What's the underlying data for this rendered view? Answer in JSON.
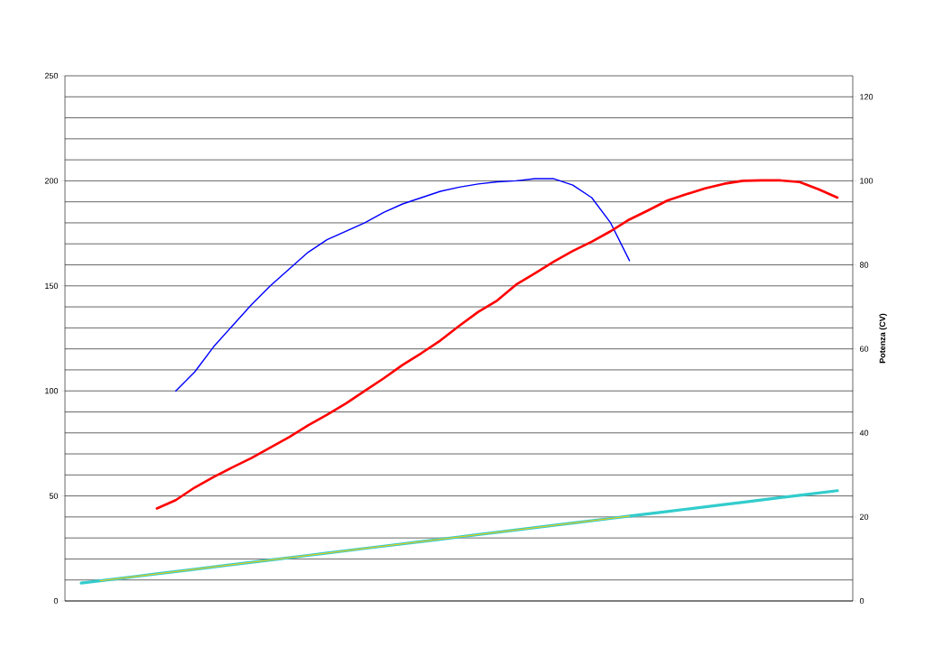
{
  "chart_data": {
    "type": "line",
    "categories": [
      null,
      null,
      null,
      null,
      null,
      null,
      null,
      null,
      null,
      null,
      null,
      null,
      null,
      null,
      null,
      null,
      null,
      null,
      null,
      null,
      null,
      null,
      null,
      null,
      null,
      null,
      null,
      null,
      null,
      null,
      null,
      null,
      null,
      null,
      null,
      null,
      null,
      null,
      null,
      null,
      null
    ],
    "series": [
      {
        "color": "#33cccc",
        "values": [
          8.5,
          9.6,
          10.7,
          11.8,
          12.9,
          14.0,
          15.1,
          16.2,
          17.3,
          18.4,
          19.5,
          20.6,
          21.7,
          22.8,
          23.9,
          25.0,
          26.1,
          27.2,
          28.3,
          29.4,
          30.5,
          31.6,
          32.7,
          33.8,
          34.9,
          36.0,
          37.1,
          38.2,
          39.3,
          40.4,
          41.5,
          42.6,
          43.7,
          44.8,
          45.9,
          47.0,
          48.1,
          49.2,
          50.3,
          51.4,
          52.5
        ]
      },
      {
        "color": "#ffcc00",
        "values": [
          null,
          9.6,
          10.7,
          11.8,
          12.9,
          14.0,
          15.1,
          16.2,
          17.3,
          18.4,
          19.5,
          20.6,
          21.7,
          22.8,
          23.9,
          25.0,
          26.1,
          27.2,
          28.3,
          29.4,
          30.5,
          31.6,
          32.7,
          33.8,
          34.9,
          36.0,
          37.1,
          38.2,
          39.3,
          40.4,
          null,
          null,
          null,
          null,
          null,
          null,
          null,
          null,
          null,
          null,
          null
        ]
      },
      {
        "color": "#0000ff",
        "values": [
          null,
          null,
          null,
          null,
          null,
          100,
          109,
          121,
          131,
          141,
          150,
          158,
          166,
          172,
          176,
          180,
          185,
          189,
          192,
          195,
          197,
          198.5,
          199.5,
          200,
          201,
          201,
          198,
          192,
          180,
          162,
          null,
          null,
          null,
          null,
          null,
          null,
          null,
          null,
          null,
          null,
          null
        ]
      },
      {
        "color": "#ff0000",
        "axis": "y2",
        "values": [
          null,
          null,
          null,
          null,
          22,
          24,
          27,
          29.5,
          31.8,
          34,
          36.5,
          39,
          41.8,
          44.3,
          47,
          50,
          53,
          56.2,
          59,
          62,
          65.5,
          68.8,
          71.5,
          75.3,
          78,
          80.8,
          83.3,
          85.5,
          88,
          90.8,
          93,
          95.3,
          96.8,
          98.2,
          99.3,
          100,
          100.1,
          100.1,
          99.7,
          98,
          96
        ]
      }
    ],
    "ylim": [
      0,
      250
    ],
    "yticks": [
      0,
      {
        "value": 10,
        "label": null
      },
      {
        "value": 20,
        "label": null
      },
      {
        "value": 30,
        "label": null
      },
      {
        "value": 40,
        "label": null
      },
      50,
      {
        "value": 60,
        "label": null
      },
      {
        "value": 70,
        "label": null
      },
      {
        "value": 80,
        "label": null
      },
      {
        "value": 90,
        "label": null
      },
      100,
      {
        "value": 110,
        "label": null
      },
      {
        "value": 120,
        "label": null
      },
      {
        "value": 130,
        "label": null
      },
      {
        "value": 140,
        "label": null
      },
      150,
      {
        "value": 160,
        "label": null
      },
      {
        "value": 170,
        "label": null
      },
      {
        "value": 180,
        "label": null
      },
      {
        "value": 190,
        "label": null
      },
      200,
      {
        "value": 210,
        "label": null
      },
      {
        "value": 220,
        "label": null
      },
      {
        "value": 230,
        "label": null
      },
      {
        "value": 240,
        "label": null
      },
      250
    ],
    "y2lim": [
      0,
      125
    ],
    "y2ticks": [
      0,
      20,
      40,
      60,
      80,
      100,
      120
    ],
    "y2label": "Potenza (CV)",
    "grid": "y",
    "marker": "none",
    "line_style": "solid"
  }
}
